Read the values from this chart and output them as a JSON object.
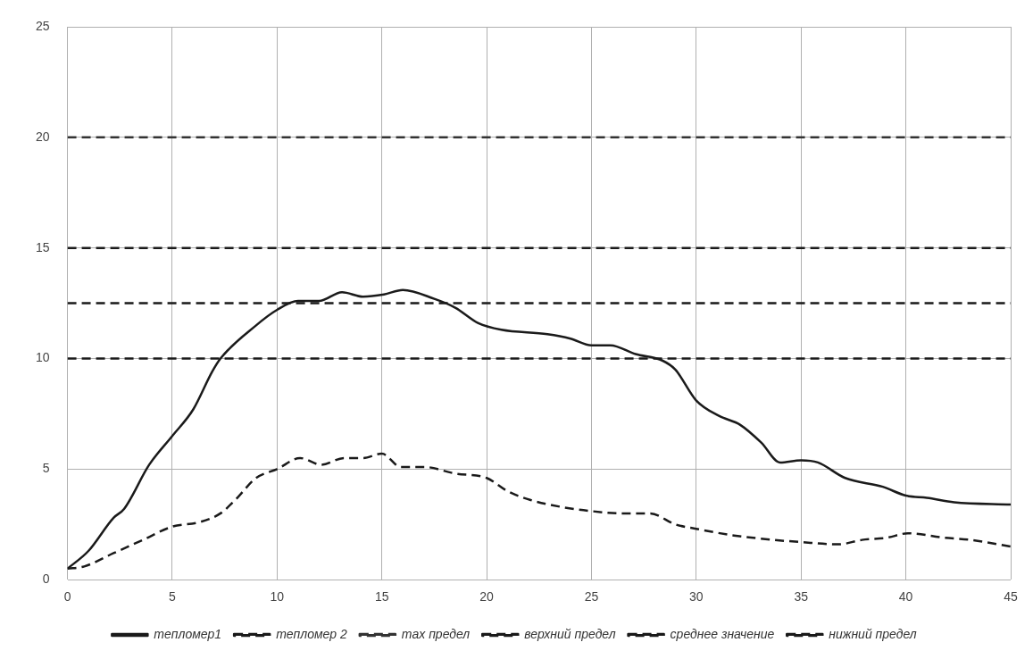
{
  "chart_data": {
    "type": "line",
    "xlim": [
      0,
      45
    ],
    "xticks": [
      0,
      5,
      10,
      15,
      20,
      25,
      30,
      35,
      40,
      45
    ],
    "ylim": [
      0,
      25
    ],
    "yticks": [
      0,
      5,
      10,
      15,
      20,
      25
    ],
    "grid": true,
    "legend": "bottom",
    "marker": "none",
    "series": [
      {
        "name": "тепломер1",
        "color": "#1a1a1a",
        "line_style": "solid",
        "x": [
          0,
          1,
          2.2,
          2.7,
          3.9,
          5,
          6,
          6.9,
          7.3,
          9,
          10,
          11,
          12,
          13.1,
          14.1,
          15.1,
          16,
          17.5,
          18.5,
          19.6,
          20.7,
          22.9,
          24,
          25,
          25.9,
          27.1,
          28.4,
          29,
          30,
          31.1,
          32.1,
          33.1,
          34,
          35,
          35.8,
          37.1,
          38.9,
          40,
          41,
          42.3,
          45
        ],
        "values": [
          0.5,
          1.3,
          2.8,
          3.2,
          5.2,
          6.5,
          7.7,
          9.4,
          10,
          11.5,
          12.2,
          12.6,
          12.6,
          13,
          12.8,
          12.9,
          13.1,
          12.7,
          12.3,
          11.6,
          11.3,
          11.1,
          10.9,
          10.6,
          10.6,
          10.2,
          9.9,
          9.5,
          8.1,
          7.4,
          7,
          6.2,
          5.3,
          5.4,
          5.3,
          4.6,
          4.2,
          3.8,
          3.7,
          3.5,
          3.4
        ]
      },
      {
        "name": "тепломер 2",
        "color": "#1a1a1a",
        "line_style": "dashed",
        "x": [
          0,
          0.8,
          2.2,
          3.6,
          5,
          6.3,
          7.3,
          8,
          9,
          10,
          11.1,
          12.1,
          13.2,
          14.1,
          15,
          15.9,
          17,
          18.5,
          20,
          21,
          22.1,
          23.5,
          25,
          26.5,
          27.8,
          29,
          30,
          31.8,
          33.7,
          35,
          36.8,
          37.9,
          39.1,
          40.1,
          41.8,
          43.1,
          45
        ],
        "values": [
          0.5,
          0.6,
          1.2,
          1.8,
          2.4,
          2.6,
          3,
          3.6,
          4.6,
          5,
          5.5,
          5.2,
          5.5,
          5.5,
          5.7,
          5.1,
          5.1,
          4.8,
          4.6,
          4,
          3.6,
          3.3,
          3.1,
          3,
          3,
          2.5,
          2.3,
          2,
          1.8,
          1.7,
          1.6,
          1.8,
          1.9,
          2.1,
          1.9,
          1.8,
          1.5
        ]
      },
      {
        "name": "max предел",
        "color": "#333333",
        "line_style": "dashed",
        "x": [
          0,
          45
        ],
        "values": [
          20,
          20
        ]
      },
      {
        "name": "верхний предел",
        "color": "#1a1a1a",
        "line_style": "dashed",
        "x": [
          0,
          45
        ],
        "values": [
          15,
          15
        ]
      },
      {
        "name": "среднее значение",
        "color": "#1a1a1a",
        "line_style": "dashed",
        "x": [
          0,
          45
        ],
        "values": [
          12.5,
          12.5
        ]
      },
      {
        "name": "нижний предел",
        "color": "#1a1a1a",
        "line_style": "dashed",
        "x": [
          0,
          45
        ],
        "values": [
          10,
          10
        ]
      }
    ]
  }
}
